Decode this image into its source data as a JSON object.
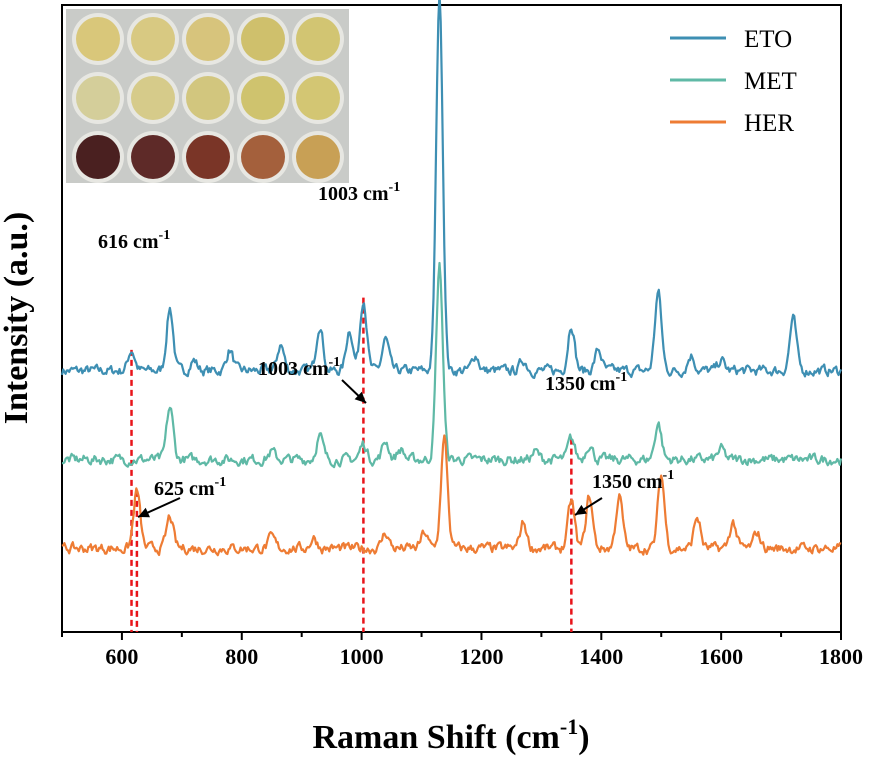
{
  "chart_data": {
    "type": "line",
    "xlabel": "Raman Shift",
    "xlabel_unit_base": "cm",
    "xlabel_unit_sup": "-1",
    "ylabel": "Intensity (a.u.)",
    "xlim": [
      500,
      1800
    ],
    "xticks": [
      600,
      800,
      1000,
      1200,
      1400,
      1600,
      1800
    ],
    "grid": false,
    "legend_position": "top-right",
    "y_scale": "arbitrary (stacked, offset spectra)",
    "series": [
      {
        "name": "ETO",
        "color": "#3e8fb3",
        "baseline": 30,
        "peaks": [
          [
            616,
            4
          ],
          [
            680,
            12
          ],
          [
            720,
            2
          ],
          [
            780,
            4
          ],
          [
            865,
            5
          ],
          [
            930,
            9
          ],
          [
            980,
            8
          ],
          [
            1003,
            14
          ],
          [
            1040,
            6
          ],
          [
            1130,
            72
          ],
          [
            1190,
            3
          ],
          [
            1270,
            2
          ],
          [
            1350,
            9
          ],
          [
            1395,
            4
          ],
          [
            1495,
            15
          ],
          [
            1550,
            3
          ],
          [
            1600,
            2
          ],
          [
            1720,
            10
          ]
        ]
      },
      {
        "name": "MET",
        "color": "#5fb9a6",
        "baseline": 13,
        "peaks": [
          [
            680,
            10
          ],
          [
            850,
            1.5
          ],
          [
            930,
            4.5
          ],
          [
            1003,
            3
          ],
          [
            1040,
            3.5
          ],
          [
            1065,
            2
          ],
          [
            1130,
            37
          ],
          [
            1290,
            1.5
          ],
          [
            1350,
            4
          ],
          [
            1380,
            3
          ],
          [
            1495,
            7
          ],
          [
            1600,
            2
          ]
        ]
      },
      {
        "name": "HER",
        "color": "#ee7c34",
        "baseline": -4,
        "peaks": [
          [
            625,
            11
          ],
          [
            680,
            6
          ],
          [
            850,
            2
          ],
          [
            920,
            2
          ],
          [
            1040,
            3
          ],
          [
            1105,
            3
          ],
          [
            1138,
            21
          ],
          [
            1270,
            5
          ],
          [
            1350,
            9
          ],
          [
            1380,
            10
          ],
          [
            1430,
            10
          ],
          [
            1500,
            14
          ],
          [
            1560,
            6
          ],
          [
            1620,
            5
          ],
          [
            1660,
            3
          ]
        ]
      }
    ],
    "annotations": [
      {
        "text": "616 cm",
        "sup": "-1",
        "x": 616,
        "series": "ETO"
      },
      {
        "text": "1003 cm",
        "sup": "-1",
        "x": 1003,
        "series": "ETO"
      },
      {
        "text": "1003 cm",
        "sup": "-1",
        "x": 1003,
        "series": "MET",
        "arrow": true
      },
      {
        "text": "1350 cm",
        "sup": "-1",
        "x": 1350,
        "series": "MET"
      },
      {
        "text": "625 cm",
        "sup": "-1",
        "x": 625,
        "series": "HER",
        "arrow": true
      },
      {
        "text": "1350 cm",
        "sup": "-1",
        "x": 1350,
        "series": "HER",
        "arrow": true
      }
    ],
    "reference_lines_x": [
      616,
      625,
      1003,
      1350
    ],
    "inset": {
      "type": "photo of well plate",
      "rows": [
        [
          "#d9c77a",
          "#d8c982",
          "#d7c47c",
          "#cfc06c",
          "#d2c572"
        ],
        [
          "#d4ce9a",
          "#d6cb8a",
          "#d2c67e",
          "#cfc36e",
          "#d3c673"
        ],
        [
          "#4a2020",
          "#5e2a28",
          "#7a3527",
          "#a4603c",
          "#c8a055"
        ]
      ]
    }
  }
}
